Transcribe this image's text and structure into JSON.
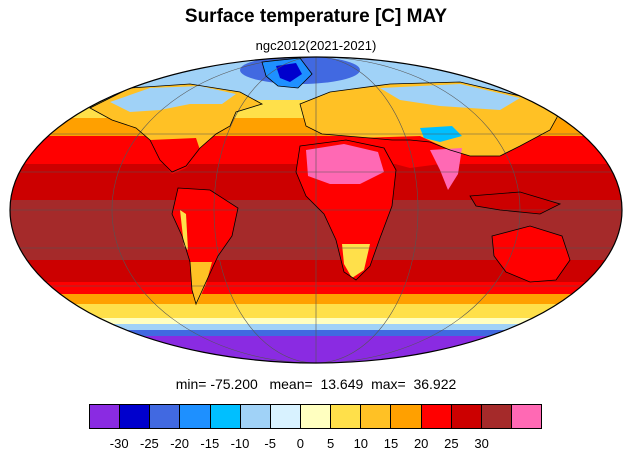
{
  "title": "Surface temperature [C] MAY",
  "subtitle": "ngc2012(2021-2021)",
  "stats": {
    "min_label": "min=",
    "min_value": "-75.200",
    "mean_label": "mean=",
    "mean_value": "13.649",
    "max_label": "max=",
    "max_value": "36.922"
  },
  "colorbar": {
    "colors": [
      "#8a2be2",
      "#0000cd",
      "#4169e1",
      "#1e90ff",
      "#00bfff",
      "#a0d2f7",
      "#d8f2ff",
      "#ffffc0",
      "#ffe04a",
      "#ffc125",
      "#ffa000",
      "#ff0000",
      "#cc0000",
      "#a52a2a",
      "#ff69b4"
    ],
    "tick_labels": [
      "-30",
      "-25",
      "-20",
      "-15",
      "-10",
      "-5",
      "0",
      "5",
      "10",
      "15",
      "20",
      "25",
      "30"
    ]
  },
  "map": {
    "projection": "mollweide",
    "ocean_band_colors": {
      "antarctic": "#8a2be2",
      "southern_ice": "#4169e1",
      "southern_cold": "#a0d2f7",
      "southern_cool": "#ffe04a",
      "southern_mild": "#ffa000",
      "subtropical": "#ff0000",
      "tropical": "#cc0000",
      "equatorial": "#a52a2a",
      "northern_mild": "#ffa000",
      "northern_cool": "#ffe04a",
      "arctic": "#a0d2f7",
      "arctic_core": "#4169e1"
    },
    "land_colors": {
      "hot_desert": "#ff69b4",
      "warm_land": "#ff0000",
      "cool_land": "#ffc125",
      "cold_land": "#00bfff",
      "ice_sheet": "#1e90ff",
      "green_land": "#d8f2ff"
    }
  }
}
